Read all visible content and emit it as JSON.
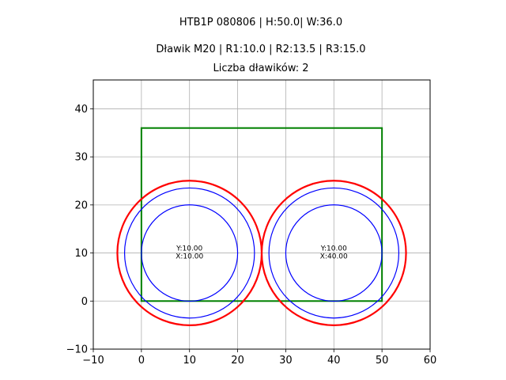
{
  "chart_data": {
    "type": "scatter",
    "title_lines": [
      "HTB1P 080806 | H:50.0| W:36.0",
      "Dławik M20 | R1:10.0 | R2:13.5 | R3:15.0",
      "Liczba dławików: 2"
    ],
    "xlim": [
      -10,
      60
    ],
    "ylim": [
      -10,
      46
    ],
    "x_ticks": [
      -10,
      0,
      10,
      20,
      30,
      40,
      50,
      60
    ],
    "y_ticks": [
      -10,
      0,
      10,
      20,
      30,
      40
    ],
    "x_tick_labels": [
      "−10",
      "0",
      "10",
      "20",
      "30",
      "40",
      "50",
      "60"
    ],
    "y_tick_labels": [
      "−10",
      "0",
      "10",
      "20",
      "30",
      "40"
    ],
    "grid": true,
    "rectangle": {
      "x": [
        0,
        50
      ],
      "y": [
        0,
        36
      ],
      "color": "#008000"
    },
    "radii": {
      "R1": 10.0,
      "R2": 13.5,
      "R3": 15.0
    },
    "circle_colors": {
      "inner": "#0000ff",
      "middle": "#0000ff",
      "outer": "#ff0000"
    },
    "glands": [
      {
        "x": 10,
        "y": 10,
        "label_y": "Y:10.00",
        "label_x": "X:10.00"
      },
      {
        "x": 40,
        "y": 10,
        "label_y": "Y:10.00",
        "label_x": "X:40.00"
      }
    ]
  }
}
